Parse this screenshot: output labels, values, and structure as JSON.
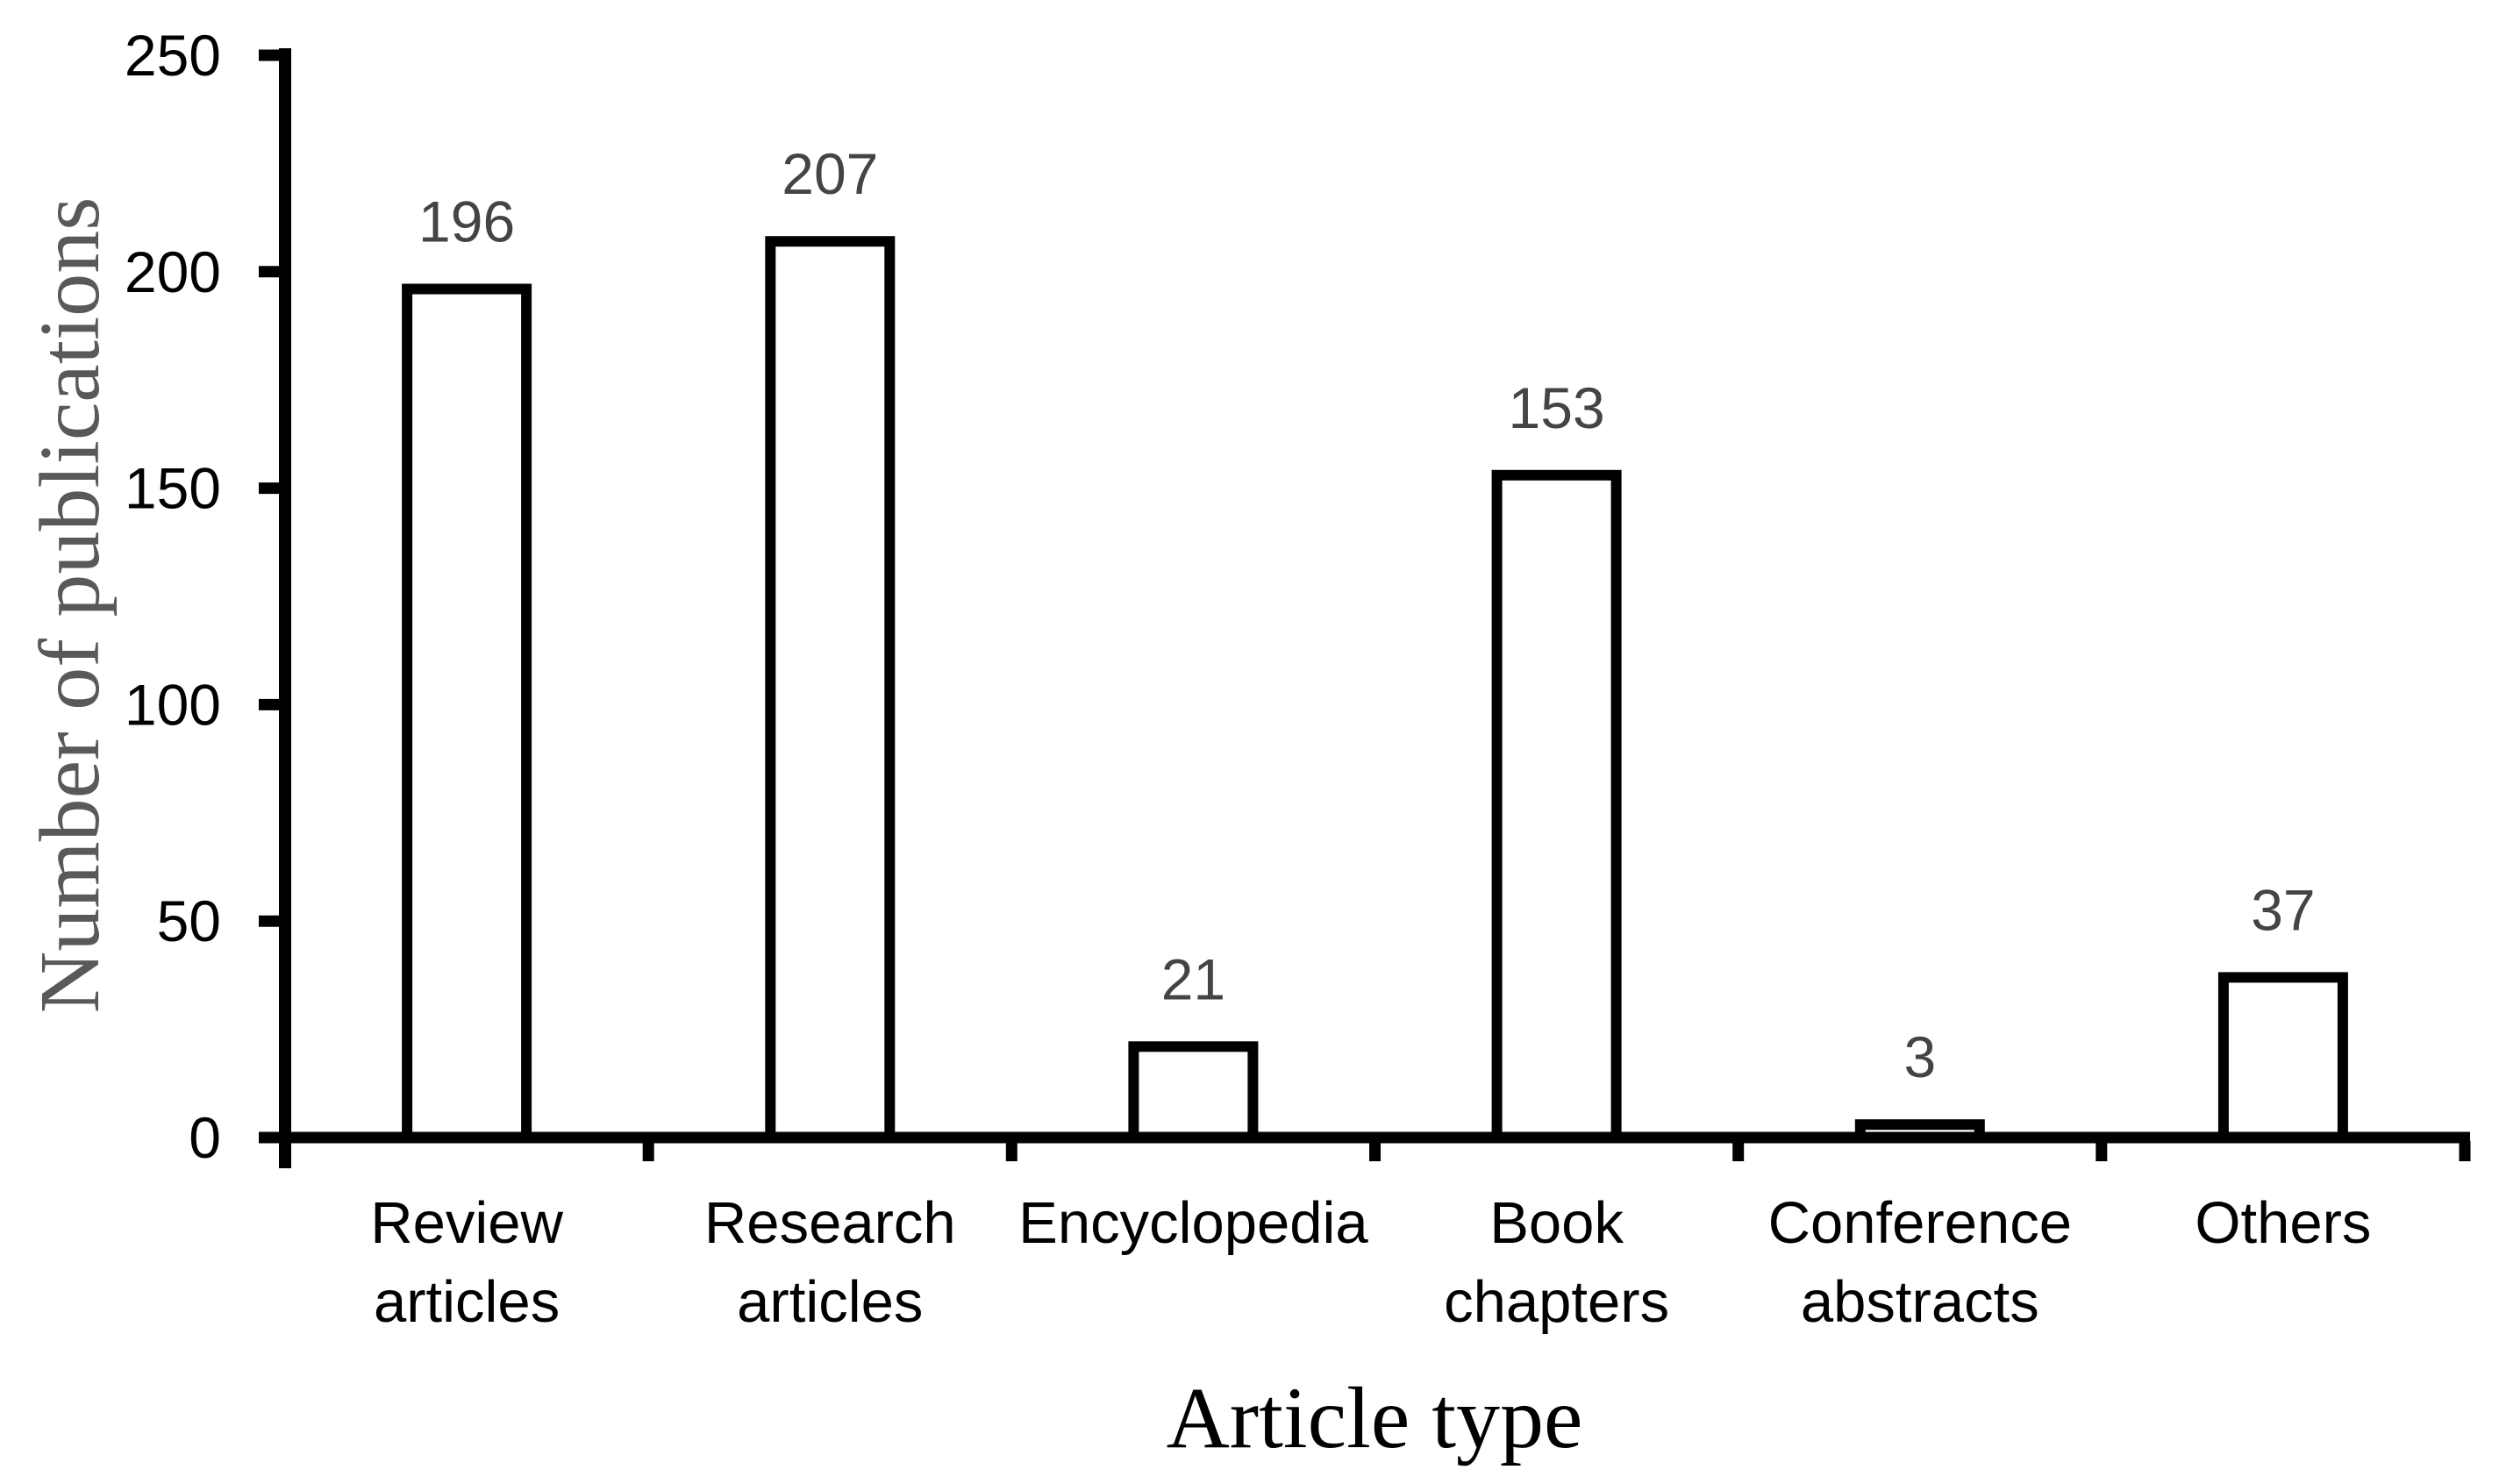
{
  "figure": {
    "background": "#ffffff"
  },
  "chart_data": {
    "type": "bar",
    "title": "",
    "xlabel": "Article type",
    "ylabel": "Number of publications",
    "categories": [
      "Review articles",
      "Research articles",
      "Encyclopedia",
      "Book chapters",
      "Conference abstracts",
      "Others"
    ],
    "category_label_lines": [
      [
        "Review",
        "articles"
      ],
      [
        "Research",
        "articles"
      ],
      [
        "Encyclopedia"
      ],
      [
        "Book",
        "chapters"
      ],
      [
        "Conference",
        "abstracts"
      ],
      [
        "Others"
      ]
    ],
    "values": [
      196,
      207,
      21,
      153,
      3,
      37
    ],
    "data_labels": [
      "196",
      "207",
      "21",
      "153",
      "3",
      "37"
    ],
    "ylim": [
      0,
      250
    ],
    "yticks": [
      0,
      50,
      100,
      150,
      200,
      250
    ],
    "ytick_labels": [
      "0",
      "50",
      "100",
      "150",
      "200",
      "250"
    ],
    "grid": false,
    "legend": false,
    "bar_fill": "#ffffff",
    "bar_stroke": "#000000",
    "axis_color": "#000000",
    "tick_label_color": "#000000",
    "data_label_color": "#444444",
    "xlabel_color": "#000000",
    "ylabel_color": "#595959"
  }
}
